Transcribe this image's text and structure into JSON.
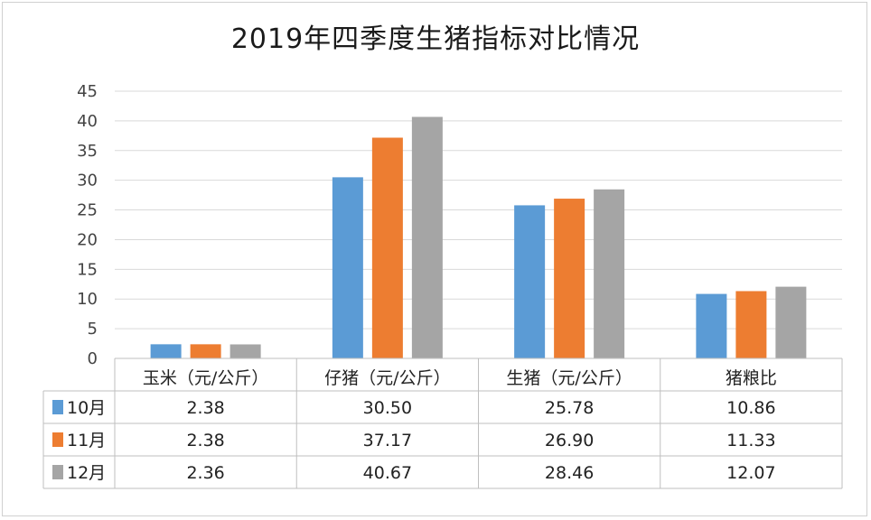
{
  "chart_data": {
    "type": "bar",
    "title": "2019年四季度生猪指标对比情况",
    "categories": [
      "玉米（元/公斤）",
      "仔猪（元/公斤）",
      "生猪（元/公斤）",
      "猪粮比"
    ],
    "series": [
      {
        "name": "10月",
        "color": "#5b9bd5",
        "values": [
          2.38,
          30.5,
          25.78,
          10.86
        ],
        "labels": [
          "2.38",
          "30.50",
          "25.78",
          "10.86"
        ]
      },
      {
        "name": "11月",
        "color": "#ed7d31",
        "values": [
          2.38,
          37.17,
          26.9,
          11.33
        ],
        "labels": [
          "2.38",
          "37.17",
          "26.90",
          "11.33"
        ]
      },
      {
        "name": "12月",
        "color": "#a5a5a5",
        "values": [
          2.36,
          40.67,
          28.46,
          12.07
        ],
        "labels": [
          "2.36",
          "40.67",
          "28.46",
          "12.07"
        ]
      }
    ],
    "ylim": [
      0,
      45
    ],
    "yticks": [
      0,
      5,
      10,
      15,
      20,
      25,
      30,
      35,
      40,
      45
    ],
    "grid": true,
    "data_table": true
  }
}
